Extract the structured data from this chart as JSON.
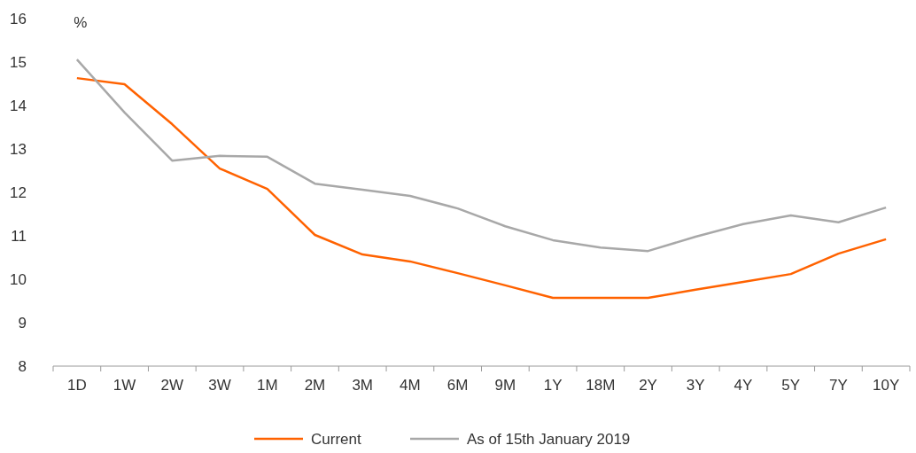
{
  "chart_data": {
    "type": "line",
    "ylabel": "%",
    "categories": [
      "1D",
      "1W",
      "2W",
      "3W",
      "1M",
      "2M",
      "3M",
      "4M",
      "6M",
      "9M",
      "1Y",
      "18M",
      "2Y",
      "3Y",
      "4Y",
      "5Y",
      "7Y",
      "10Y"
    ],
    "series": [
      {
        "name": "Current",
        "color": "#ff6200",
        "values": [
          14.63,
          14.49,
          13.57,
          12.55,
          12.08,
          11.02,
          10.57,
          10.41,
          10.14,
          9.86,
          9.57,
          9.57,
          9.57,
          9.76,
          9.94,
          10.12,
          10.59,
          10.92
        ]
      },
      {
        "name": "As of 15th January 2019",
        "color": "#a8a8a8",
        "values": [
          15.06,
          13.84,
          12.73,
          12.84,
          12.82,
          12.2,
          12.06,
          11.92,
          11.63,
          11.22,
          10.9,
          10.73,
          10.65,
          10.98,
          11.27,
          11.47,
          11.31,
          11.65
        ]
      }
    ],
    "ylim": [
      8,
      16
    ],
    "yticks": [
      8,
      9,
      10,
      11,
      12,
      13,
      14,
      15,
      16
    ],
    "grid": false,
    "legend": "bottom",
    "marker": "none",
    "line_style": "solid"
  }
}
